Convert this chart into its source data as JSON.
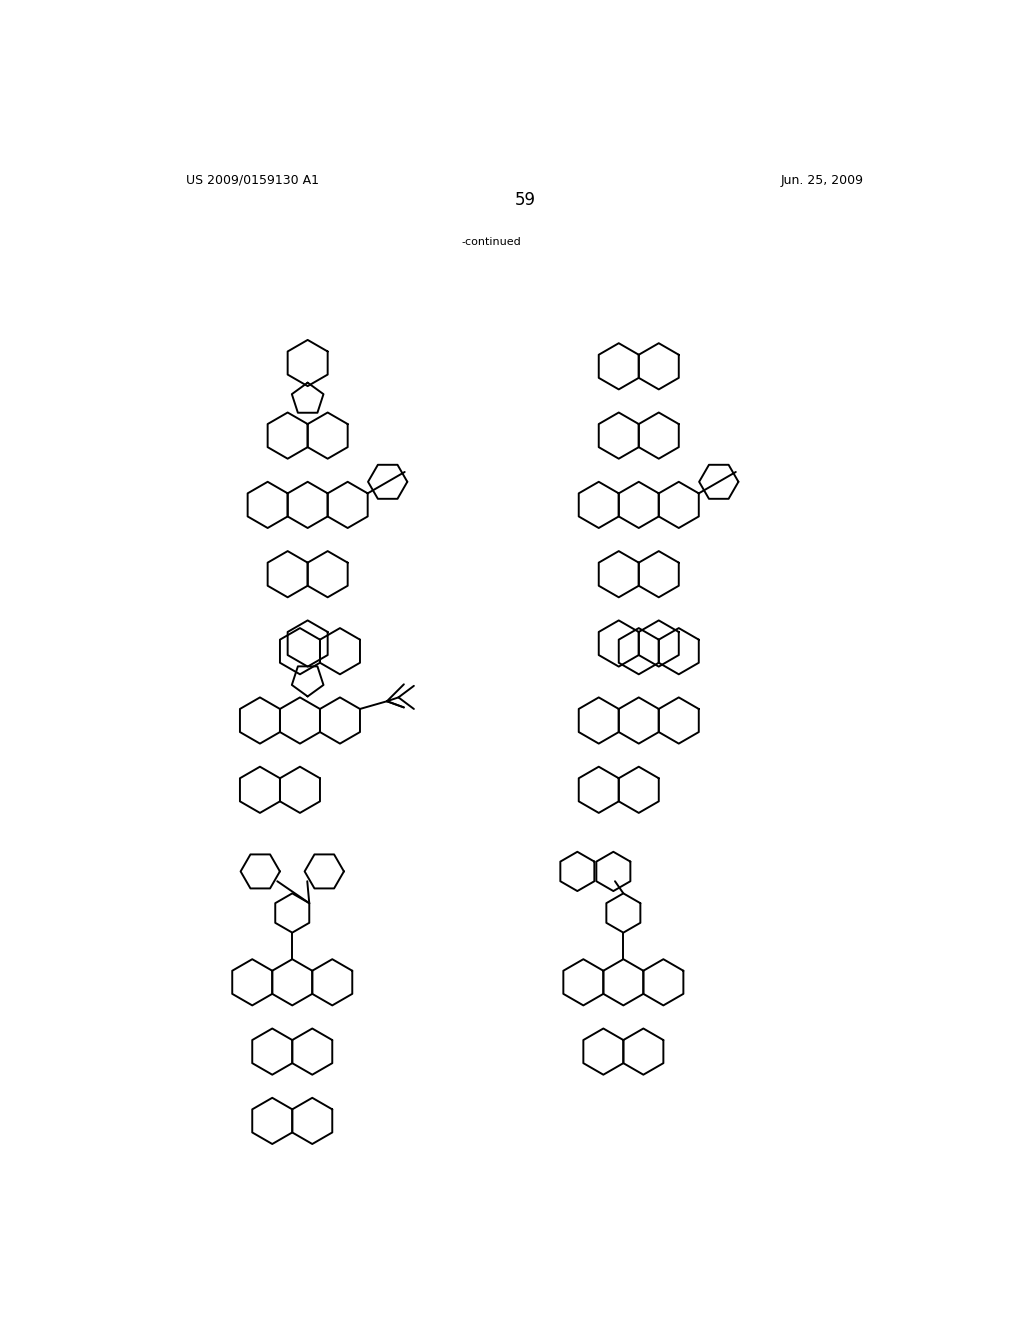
{
  "page_number": "59",
  "patent_number": "US 2009/0159130 A1",
  "patent_date": "Jun. 25, 2009",
  "continued_label": "-continued",
  "background_color": "#ffffff",
  "line_color": "#000000",
  "line_width": 1.4,
  "font_size_header": 9,
  "font_size_page": 12
}
